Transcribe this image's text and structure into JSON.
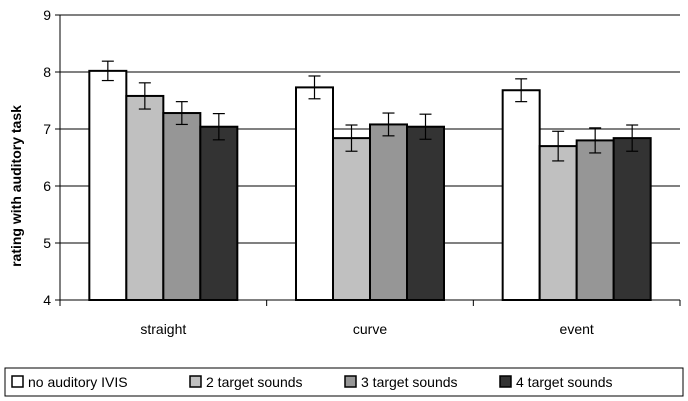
{
  "chart_data": {
    "type": "bar",
    "title": "",
    "xlabel": "",
    "ylabel": "rating with auditory task",
    "ylim": [
      4,
      9
    ],
    "yticks": [
      4,
      5,
      6,
      7,
      8,
      9
    ],
    "grid": "horizontal",
    "legend_position": "bottom",
    "error_bars": true,
    "categories": [
      "straight",
      "curve",
      "event"
    ],
    "series": [
      {
        "name": "no auditory IVIS",
        "color": "#ffffff",
        "values": [
          8.02,
          7.73,
          7.68
        ],
        "errors": [
          0.17,
          0.2,
          0.2
        ]
      },
      {
        "name": "2 target sounds",
        "color": "#c0c0c0",
        "values": [
          7.58,
          6.84,
          6.7
        ],
        "errors": [
          0.23,
          0.23,
          0.26
        ]
      },
      {
        "name": "3 target sounds",
        "color": "#969696",
        "values": [
          7.28,
          7.08,
          6.8
        ],
        "errors": [
          0.2,
          0.2,
          0.22
        ]
      },
      {
        "name": "4 target sounds",
        "color": "#333333",
        "values": [
          7.04,
          7.04,
          6.84
        ],
        "errors": [
          0.23,
          0.22,
          0.23
        ]
      }
    ]
  }
}
